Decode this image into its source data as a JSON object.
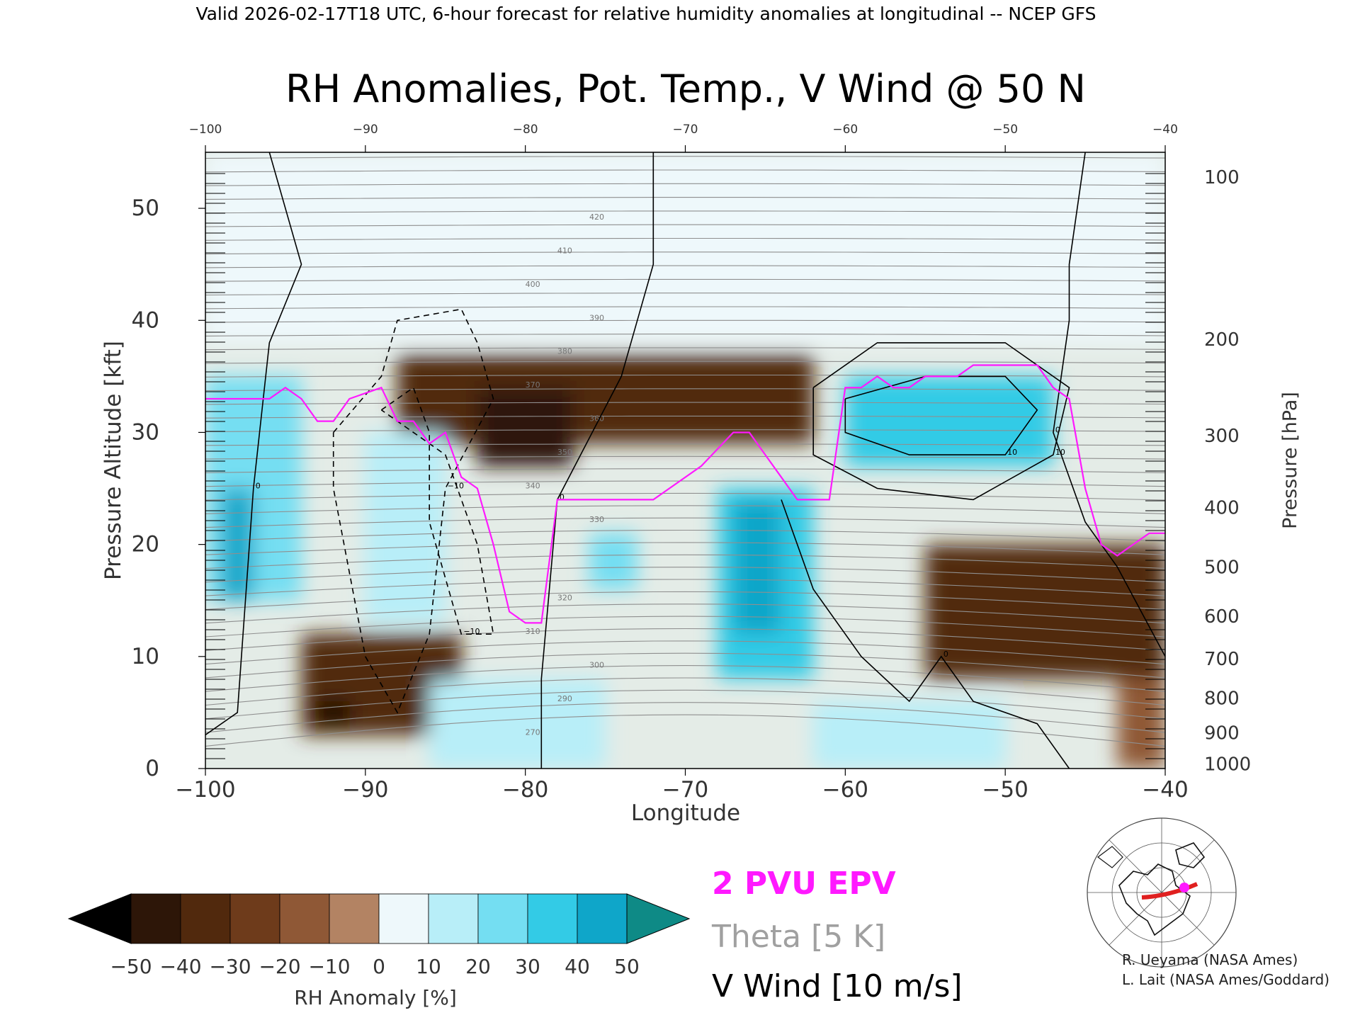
{
  "header": "Valid 2026-02-17T18 UTC, 6-hour forecast for relative humidity anomalies at longitudinal -- NCEP GFS",
  "credits": [
    "R. Ueyama (NASA Ames)",
    "L. Lait (NASA Ames/Goddard)"
  ],
  "map_icon": "north-polar-stereographic-locator-map",
  "chart_data": {
    "type": "heatmap",
    "title": "RH Anomalies, Pot. Temp., V Wind @ 50 N",
    "xlabel": "Longitude",
    "ylabel_left": "Pressure Altitude [kft]",
    "ylabel_right": "Pressure [hPa]",
    "xlim": [
      -100,
      -40
    ],
    "ylim": [
      0,
      55
    ],
    "x_ticks": [
      -100,
      -90,
      -80,
      -70,
      -60,
      -50,
      -40
    ],
    "x_tick_labels": [
      "−100",
      "−90",
      "−80",
      "−70",
      "−60",
      "−50",
      "−40"
    ],
    "y_ticks": [
      0,
      10,
      20,
      30,
      40,
      50
    ],
    "y_tick_labels": [
      "0",
      "10",
      "20",
      "30",
      "40",
      "50"
    ],
    "pressure_ticks": [
      {
        "hPa": "100",
        "kft": 52.8
      },
      {
        "hPa": "200",
        "kft": 38.3
      },
      {
        "hPa": "300",
        "kft": 29.7
      },
      {
        "hPa": "400",
        "kft": 23.3
      },
      {
        "hPa": "500",
        "kft": 18.0
      },
      {
        "hPa": "600",
        "kft": 13.6
      },
      {
        "hPa": "700",
        "kft": 9.8
      },
      {
        "hPa": "800",
        "kft": 6.3
      },
      {
        "hPa": "900",
        "kft": 3.2
      },
      {
        "hPa": "1000",
        "kft": 0.4
      }
    ],
    "rh_colorbar": {
      "label": "RH Anomaly [%]",
      "tick_labels": [
        "−50",
        "−40",
        "−30",
        "−20",
        "−10",
        "0",
        "10",
        "20",
        "30",
        "40",
        "50"
      ],
      "colors": [
        "#2d1608",
        "#51290d",
        "#6e3b1b",
        "#8f5836",
        "#b38363",
        "#dfc7b5",
        "#eef8fb",
        "#b8eef8",
        "#74def2",
        "#33cbe6",
        "#0fa6c9"
      ],
      "under_color": "#000000",
      "over_color": "#0e8a86"
    },
    "rh_anomaly_regions": [
      {
        "x": [
          -100,
          -40
        ],
        "y": [
          38,
          55
        ],
        "value": 0
      },
      {
        "x": [
          -88,
          -62
        ],
        "y": [
          29,
          37
        ],
        "value": -40
      },
      {
        "x": [
          -83,
          -77
        ],
        "y": [
          27,
          34
        ],
        "value": -50
      },
      {
        "x": [
          -100,
          -94
        ],
        "y": [
          15,
          35
        ],
        "value": 30
      },
      {
        "x": [
          -99,
          -97
        ],
        "y": [
          15,
          25
        ],
        "value": 50
      },
      {
        "x": [
          -90,
          -85
        ],
        "y": [
          13,
          30
        ],
        "value": 20
      },
      {
        "x": [
          -94,
          -84
        ],
        "y": [
          3,
          12
        ],
        "value": -40
      },
      {
        "x": [
          -93,
          -91
        ],
        "y": [
          4,
          6
        ],
        "value": -55
      },
      {
        "x": [
          -86,
          -75
        ],
        "y": [
          0,
          8
        ],
        "value": 20
      },
      {
        "x": [
          -76,
          -73
        ],
        "y": [
          16,
          21
        ],
        "value": 30
      },
      {
        "x": [
          -68,
          -62
        ],
        "y": [
          8,
          25
        ],
        "value": 40
      },
      {
        "x": [
          -67,
          -64
        ],
        "y": [
          12,
          24
        ],
        "value": 50
      },
      {
        "x": [
          -60,
          -47
        ],
        "y": [
          27,
          35
        ],
        "value": 40
      },
      {
        "x": [
          -55,
          -40
        ],
        "y": [
          8,
          20
        ],
        "value": -40
      },
      {
        "x": [
          -62,
          -50
        ],
        "y": [
          0,
          6
        ],
        "value": 20
      },
      {
        "x": [
          -43,
          -40
        ],
        "y": [
          0,
          8
        ],
        "value": -20
      }
    ],
    "epv_2pvu": {
      "label": "2 PVU EPV",
      "color": "#ff19ff",
      "x": [
        -100,
        -96,
        -95,
        -94,
        -93,
        -92,
        -91,
        -89,
        -88,
        -87,
        -86,
        -85,
        -84,
        -83,
        -82,
        -81,
        -80,
        -79,
        -78,
        -77,
        -75,
        -72,
        -69,
        -67,
        -66,
        -65,
        -64,
        -63,
        -61,
        -60,
        -59,
        -58,
        -57,
        -56,
        -55,
        -54,
        -53,
        -52,
        -51,
        -50,
        -49,
        -48,
        -47,
        -46,
        -45,
        -44,
        -43,
        -42,
        -41,
        -40
      ],
      "y": [
        33,
        33,
        34,
        33,
        31,
        31,
        33,
        34,
        31,
        31,
        29,
        30,
        26,
        25,
        20,
        14,
        13,
        13,
        24,
        24,
        24,
        24,
        27,
        30,
        30,
        28,
        26,
        24,
        24,
        34,
        34,
        35,
        34,
        34,
        35,
        35,
        35,
        36,
        36,
        36,
        36,
        36,
        34,
        33,
        25,
        20,
        19,
        20,
        21,
        21
      ]
    },
    "theta": {
      "label": "Theta [5 K]",
      "interval_K": 5,
      "labels": [
        "270",
        "290",
        "300",
        "310",
        "320",
        "330",
        "340",
        "350",
        "360",
        "370",
        "380",
        "390",
        "400",
        "410",
        "420"
      ]
    },
    "v_wind": {
      "label": "V Wind [10 m/s]",
      "interval_mps": 10,
      "labels": [
        "0",
        "10",
        "−10"
      ]
    }
  }
}
